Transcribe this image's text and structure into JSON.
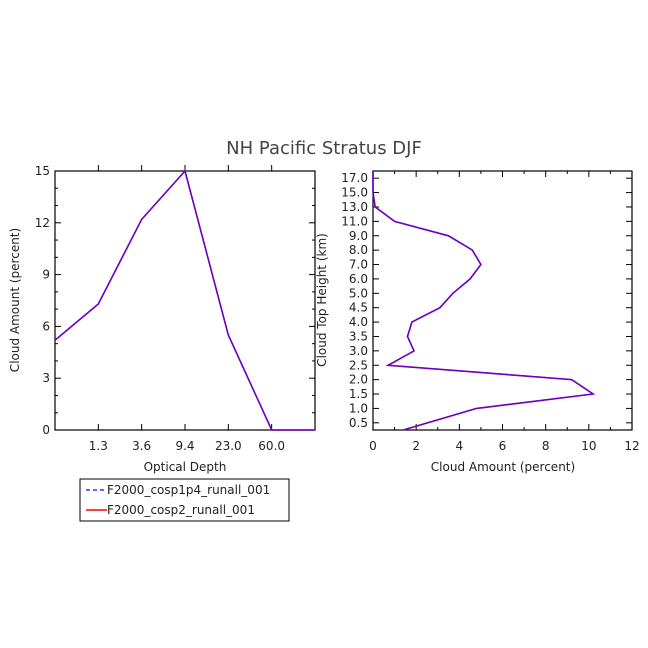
{
  "title": "NH Pacific Stratus DJF",
  "colors": {
    "series1": "#3333ff",
    "series2": "#ff0000",
    "overlap": "#6a00c8"
  },
  "legend": {
    "placement": "below-left",
    "entries": [
      {
        "label": "F2000_cosp1p4_runall_001",
        "style": "dashed",
        "color": "#3333ff"
      },
      {
        "label": "F2000_cosp2_runall_001",
        "style": "solid",
        "color": "#ff0000"
      }
    ]
  },
  "chart_data": [
    {
      "type": "line",
      "xlabel": "Optical Depth",
      "ylabel": "Cloud Amount (percent)",
      "xticklabels": [
        "1.3",
        "3.6",
        "9.4",
        "23.0",
        "60.0"
      ],
      "x": [
        0.3,
        1.3,
        3.6,
        9.4,
        23.0,
        60.0,
        150.0
      ],
      "ylim": [
        0,
        15
      ],
      "yticks": [
        0,
        3,
        6,
        9,
        12,
        15
      ],
      "series": [
        {
          "name": "F2000_cosp1p4_runall_001",
          "values": [
            5.2,
            7.3,
            12.2,
            15.0,
            5.5,
            0.0,
            0.0
          ]
        },
        {
          "name": "F2000_cosp2_runall_001",
          "values": [
            5.2,
            7.3,
            12.2,
            15.0,
            5.5,
            0.0,
            0.0
          ]
        }
      ]
    },
    {
      "type": "line",
      "xlabel": "Cloud Amount (percent)",
      "ylabel": "Cloud Top Height (km)",
      "xlim": [
        0,
        12
      ],
      "xticks": [
        0,
        2,
        4,
        6,
        8,
        10,
        12
      ],
      "ylim": [
        0,
        18
      ],
      "yticklabels": [
        "0.5",
        "1.0",
        "1.5",
        "2.0",
        "2.5",
        "3.0",
        "3.5",
        "4.0",
        "4.5",
        "5.0",
        "6.0",
        "7.0",
        "8.0",
        "9.0",
        "11.0",
        "13.0",
        "15.0",
        "17.0"
      ],
      "heights": [
        0.25,
        0.75,
        1.25,
        1.75,
        2.25,
        2.75,
        3.25,
        3.75,
        4.25,
        4.75,
        5.5,
        6.5,
        7.5,
        8.5,
        10.0,
        12.0,
        14.0,
        16.0,
        18.0
      ],
      "series": [
        {
          "name": "F2000_cosp1p4_runall_001",
          "values": [
            1.4,
            4.8,
            10.2,
            9.2,
            0.7,
            1.9,
            1.6,
            1.8,
            3.1,
            3.7,
            4.5,
            5.0,
            4.6,
            3.5,
            1.0,
            0.1,
            0.0,
            0.0,
            0.0
          ]
        },
        {
          "name": "F2000_cosp2_runall_001",
          "values": [
            1.4,
            4.8,
            10.2,
            9.2,
            0.7,
            1.9,
            1.6,
            1.8,
            3.1,
            3.7,
            4.5,
            5.0,
            4.6,
            3.5,
            1.0,
            0.1,
            0.0,
            0.0,
            0.0
          ]
        }
      ]
    }
  ]
}
